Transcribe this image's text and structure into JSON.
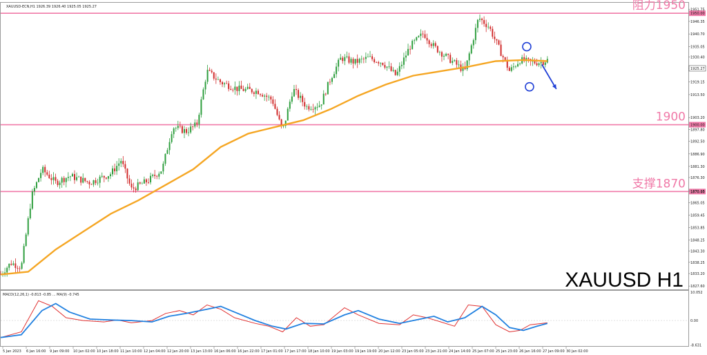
{
  "chart_data": [
    {
      "type": "candlestick",
      "symbol_header": "XAUUSD-ECN,H1  1926.39 1926.40 1925.05 1925.27",
      "watermark": "XAUUSD H1",
      "ylim": [
        1826.1,
        1954.7
      ],
      "y_ticks": [
        "1951.75",
        "1946.35",
        "1940.70",
        "1935.05",
        "1930.40",
        "1925.27",
        "1919.15",
        "1913.50",
        "1903.20",
        "1897.80",
        "1892.50",
        "1886.90",
        "1881.30",
        "1876.30",
        "1870.15",
        "1865.05",
        "1859.45",
        "1853.85",
        "1848.25",
        "1843.30",
        "1838.25",
        "1833.20",
        "1827.60"
      ],
      "x_ticks": [
        "5 Jan 2023",
        "6 Jan 16:00",
        "9 Jan 09:00",
        "10 Jan 02:00",
        "10 Jan 18:00",
        "11 Jan 10:00",
        "12 Jan 04:00",
        "12 Jan 20:00",
        "13 Jan 13:00",
        "16 Jan 06:00",
        "16 Jan 22:00",
        "17 Jan 01:00",
        "17 Jan 17:00",
        "18 Jan 10:00",
        "19 Jan 03:00",
        "19 Jan 19:00",
        "20 Jan 12:00",
        "23 Jan 05:00",
        "23 Jan 21:00",
        "24 Jan 14:00",
        "25 Jan 07:00",
        "25 Jan 23:00",
        "26 Jan 16:00",
        "27 Jan 09:00",
        "30 Jan 02:00"
      ],
      "current_price": "1925.27",
      "horizontal_levels": [
        {
          "price": 1950,
          "label": "阻力1950",
          "tag": "1950.00"
        },
        {
          "price": 1900,
          "label": "1900",
          "tag": "1900.00"
        },
        {
          "price": 1870,
          "label": "支撑1870",
          "tag": "1870.00"
        }
      ],
      "price_path": [
        [
          0,
          1833
        ],
        [
          0.015,
          1838
        ],
        [
          0.03,
          1836
        ],
        [
          0.045,
          1868
        ],
        [
          0.06,
          1880
        ],
        [
          0.08,
          1874
        ],
        [
          0.1,
          1877
        ],
        [
          0.13,
          1874
        ],
        [
          0.16,
          1878
        ],
        [
          0.175,
          1884
        ],
        [
          0.19,
          1871
        ],
        [
          0.215,
          1875
        ],
        [
          0.235,
          1880
        ],
        [
          0.25,
          1899
        ],
        [
          0.27,
          1897
        ],
        [
          0.285,
          1900
        ],
        [
          0.3,
          1924
        ],
        [
          0.32,
          1919
        ],
        [
          0.345,
          1916
        ],
        [
          0.375,
          1915
        ],
        [
          0.395,
          1911
        ],
        [
          0.41,
          1897
        ],
        [
          0.425,
          1916
        ],
        [
          0.445,
          1908
        ],
        [
          0.465,
          1909
        ],
        [
          0.48,
          1921
        ],
        [
          0.495,
          1930
        ],
        [
          0.515,
          1928
        ],
        [
          0.535,
          1930
        ],
        [
          0.555,
          1928
        ],
        [
          0.575,
          1922
        ],
        [
          0.595,
          1935
        ],
        [
          0.615,
          1941
        ],
        [
          0.63,
          1935
        ],
        [
          0.65,
          1930
        ],
        [
          0.675,
          1924
        ],
        [
          0.695,
          1948
        ],
        [
          0.71,
          1944
        ],
        [
          0.725,
          1934
        ],
        [
          0.74,
          1924
        ],
        [
          0.755,
          1929
        ],
        [
          0.77,
          1928
        ],
        [
          0.785,
          1928
        ],
        [
          0.795,
          1929
        ]
      ],
      "moving_average": [
        [
          0,
          1832.8
        ],
        [
          0.04,
          1834
        ],
        [
          0.08,
          1844
        ],
        [
          0.12,
          1852
        ],
        [
          0.16,
          1860
        ],
        [
          0.2,
          1866
        ],
        [
          0.24,
          1873
        ],
        [
          0.28,
          1880
        ],
        [
          0.32,
          1890
        ],
        [
          0.36,
          1896
        ],
        [
          0.4,
          1899
        ],
        [
          0.44,
          1902
        ],
        [
          0.48,
          1907
        ],
        [
          0.52,
          1913
        ],
        [
          0.56,
          1918
        ],
        [
          0.6,
          1922
        ],
        [
          0.64,
          1924
        ],
        [
          0.68,
          1926
        ],
        [
          0.72,
          1928.5
        ],
        [
          0.76,
          1929
        ],
        [
          0.795,
          1928.5
        ]
      ],
      "circles": [
        {
          "x": 0.765,
          "y": 1935
        },
        {
          "x": 0.769,
          "y": 1917
        }
      ],
      "arrow": {
        "from": [
          0.787,
          1927
        ],
        "to": [
          0.808,
          1916
        ]
      }
    },
    {
      "type": "line",
      "header": "MACD(12,26,1) -0.813 -0.85 ... MA(9) -0.745",
      "ylim": [
        -9.0,
        10.5
      ],
      "y_ticks": [
        "10.052",
        "0.00",
        "-8.631"
      ],
      "series": [
        {
          "name": "MACD",
          "color": "#e03030",
          "values": [
            [
              0,
              -6
            ],
            [
              0.03,
              -4
            ],
            [
              0.055,
              7
            ],
            [
              0.075,
              5
            ],
            [
              0.095,
              1
            ],
            [
              0.12,
              0
            ],
            [
              0.15,
              -0.5
            ],
            [
              0.17,
              0.2
            ],
            [
              0.19,
              -0.8
            ],
            [
              0.22,
              0
            ],
            [
              0.24,
              2.5
            ],
            [
              0.26,
              3.5
            ],
            [
              0.28,
              2
            ],
            [
              0.3,
              5.5
            ],
            [
              0.32,
              4
            ],
            [
              0.34,
              1
            ],
            [
              0.37,
              -1
            ],
            [
              0.39,
              -2
            ],
            [
              0.41,
              -4
            ],
            [
              0.43,
              1
            ],
            [
              0.45,
              -2
            ],
            [
              0.47,
              -1.5
            ],
            [
              0.5,
              4.5
            ],
            [
              0.52,
              2
            ],
            [
              0.55,
              -1
            ],
            [
              0.58,
              -1.5
            ],
            [
              0.6,
              2
            ],
            [
              0.62,
              1
            ],
            [
              0.64,
              -0.5
            ],
            [
              0.66,
              -2
            ],
            [
              0.68,
              5.5
            ],
            [
              0.7,
              5
            ],
            [
              0.72,
              -1.5
            ],
            [
              0.74,
              -4
            ],
            [
              0.755,
              -3.5
            ],
            [
              0.77,
              -1.5
            ],
            [
              0.795,
              -0.8
            ]
          ]
        },
        {
          "name": "Signal",
          "color": "#2080e0",
          "values": [
            [
              0,
              -6
            ],
            [
              0.03,
              -5
            ],
            [
              0.06,
              3.5
            ],
            [
              0.08,
              6
            ],
            [
              0.1,
              3
            ],
            [
              0.13,
              0.5
            ],
            [
              0.16,
              0.2
            ],
            [
              0.19,
              0
            ],
            [
              0.22,
              -0.5
            ],
            [
              0.245,
              1.5
            ],
            [
              0.27,
              2.5
            ],
            [
              0.3,
              4
            ],
            [
              0.32,
              5
            ],
            [
              0.34,
              3
            ],
            [
              0.37,
              0
            ],
            [
              0.395,
              -2
            ],
            [
              0.415,
              -3
            ],
            [
              0.44,
              -1
            ],
            [
              0.47,
              -1.2
            ],
            [
              0.5,
              2
            ],
            [
              0.52,
              3.5
            ],
            [
              0.55,
              0.5
            ],
            [
              0.58,
              -1
            ],
            [
              0.61,
              0.5
            ],
            [
              0.63,
              1.5
            ],
            [
              0.65,
              -0.5
            ],
            [
              0.675,
              1
            ],
            [
              0.7,
              5
            ],
            [
              0.72,
              2
            ],
            [
              0.74,
              -2.5
            ],
            [
              0.76,
              -3.5
            ],
            [
              0.78,
              -2
            ],
            [
              0.795,
              -1
            ]
          ]
        }
      ]
    }
  ]
}
